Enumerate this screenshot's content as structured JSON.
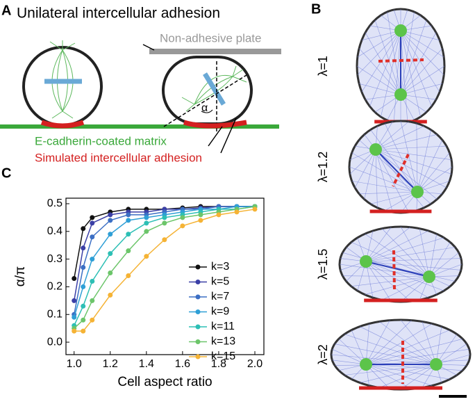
{
  "panel_a": {
    "letter": "A",
    "title": "Unilateral intercellular adhesion",
    "plate_label": "Non-adhesive plate",
    "angle_label": "α",
    "matrix_label": "E-cadherin-coated matrix",
    "adhesion_label": "Simulated intercellular adhesion"
  },
  "panel_b": {
    "letter": "B",
    "labels": [
      "λ=1",
      "λ=1.2",
      "λ=1.5",
      "λ=2"
    ]
  },
  "panel_c": {
    "letter": "C"
  },
  "chart_data": {
    "type": "line",
    "x_label": "Cell aspect ratio",
    "y_label": "α/π",
    "x": [
      1.0,
      1.05,
      1.1,
      1.2,
      1.3,
      1.4,
      1.5,
      1.6,
      1.7,
      1.8,
      1.9,
      2.0
    ],
    "series": [
      {
        "name": "k=3",
        "color": "#111111",
        "values": [
          0.23,
          0.41,
          0.45,
          0.47,
          0.48,
          0.48,
          0.48,
          0.485,
          0.49,
          0.49,
          0.49,
          0.49
        ]
      },
      {
        "name": "k=5",
        "color": "#3b3fa6",
        "values": [
          0.15,
          0.34,
          0.43,
          0.46,
          0.47,
          0.47,
          0.48,
          0.48,
          0.485,
          0.49,
          0.49,
          0.49
        ]
      },
      {
        "name": "k=7",
        "color": "#3c6fc4",
        "values": [
          0.1,
          0.27,
          0.38,
          0.44,
          0.46,
          0.46,
          0.47,
          0.48,
          0.48,
          0.49,
          0.49,
          0.49
        ]
      },
      {
        "name": "k=9",
        "color": "#2f9fd6",
        "values": [
          0.09,
          0.2,
          0.3,
          0.39,
          0.44,
          0.45,
          0.46,
          0.47,
          0.48,
          0.48,
          0.49,
          0.49
        ]
      },
      {
        "name": "k=11",
        "color": "#2dbfb5",
        "values": [
          0.06,
          0.13,
          0.22,
          0.32,
          0.39,
          0.43,
          0.45,
          0.46,
          0.47,
          0.48,
          0.48,
          0.49
        ]
      },
      {
        "name": "k=13",
        "color": "#6cc56a",
        "values": [
          0.05,
          0.08,
          0.15,
          0.25,
          0.33,
          0.4,
          0.43,
          0.45,
          0.46,
          0.47,
          0.48,
          0.49
        ]
      },
      {
        "name": "k=15",
        "color": "#f5b335",
        "values": [
          0.04,
          0.04,
          0.08,
          0.17,
          0.24,
          0.31,
          0.37,
          0.42,
          0.44,
          0.46,
          0.47,
          0.48
        ]
      }
    ],
    "xlim": [
      0.955,
      2.05
    ],
    "ylim": [
      -0.045,
      0.52
    ],
    "xticks": [
      {
        "value": 1,
        "label": "1.0"
      },
      1.2,
      1.4,
      1.6,
      1.8,
      {
        "value": 2,
        "label": "2.0"
      }
    ],
    "yticks": [
      {
        "value": 0,
        "label": "0.0"
      },
      0.1,
      0.2,
      0.3,
      0.4,
      0.5
    ]
  }
}
